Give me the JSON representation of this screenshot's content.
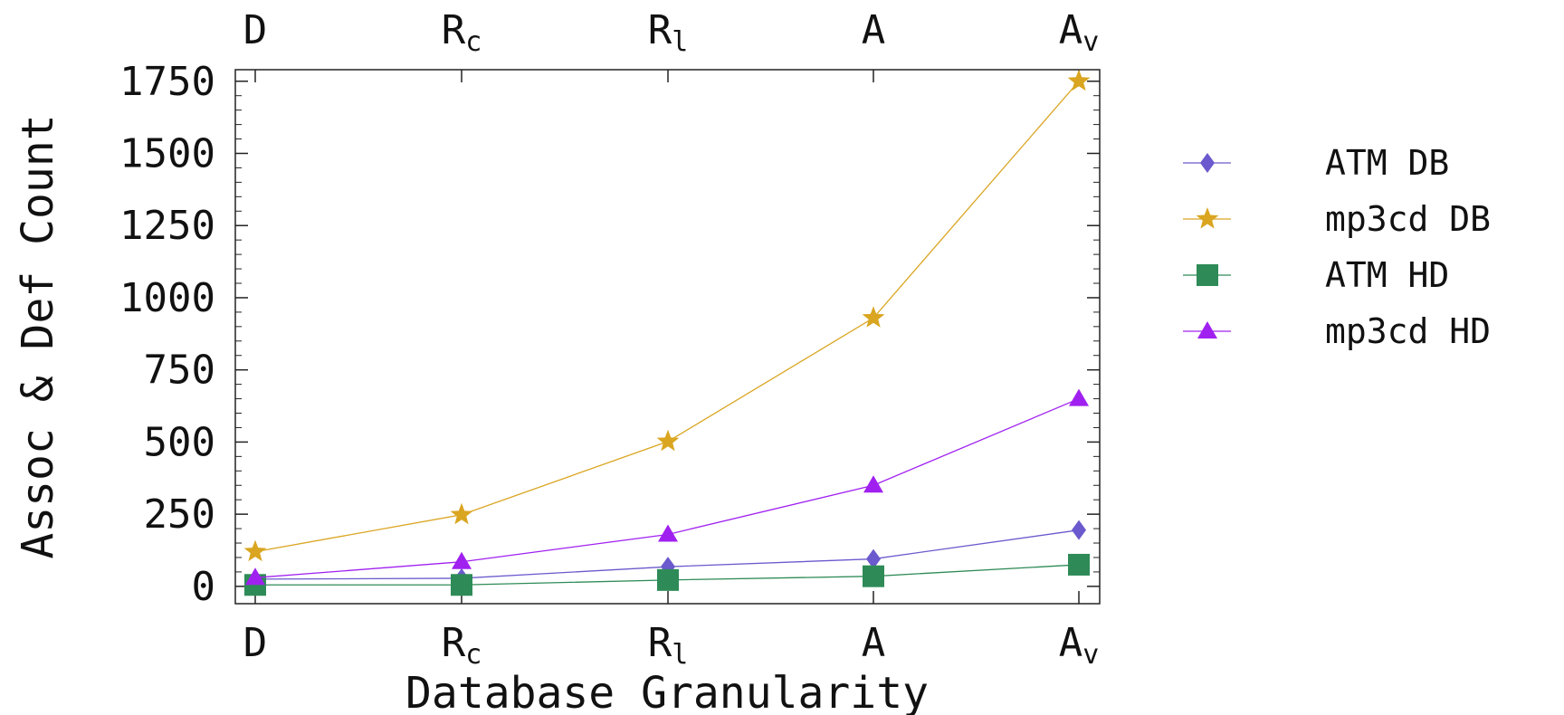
{
  "chart_data": {
    "type": "line",
    "xlabel": "Database Granularity",
    "ylabel": "Assoc & Def Count",
    "categories": [
      {
        "main": "D",
        "sub": ""
      },
      {
        "main": "R",
        "sub": "c"
      },
      {
        "main": "R",
        "sub": "l"
      },
      {
        "main": "A",
        "sub": ""
      },
      {
        "main": "A",
        "sub": "v"
      }
    ],
    "ylim": [
      -60,
      1790
    ],
    "yticks": [
      0,
      250,
      500,
      750,
      1000,
      1250,
      1500,
      1750
    ],
    "ytick_labels": [
      "0",
      "250",
      "500",
      "750",
      "1000",
      "1250",
      "1500",
      "1750"
    ],
    "grid": false,
    "legend_position": "right",
    "series": [
      {
        "name": "ATM DB",
        "marker": "diamond",
        "color": "#6A5ACD",
        "values": [
          25,
          28,
          68,
          95,
          195
        ]
      },
      {
        "name": "mp3cd DB",
        "marker": "star",
        "color": "#DAA520",
        "values": [
          120,
          248,
          502,
          930,
          1750
        ]
      },
      {
        "name": "ATM HD",
        "marker": "square",
        "color": "#2E8B57",
        "values": [
          5,
          5,
          22,
          35,
          75
        ]
      },
      {
        "name": "mp3cd HD",
        "marker": "triangle",
        "color": "#A020F0",
        "values": [
          30,
          85,
          180,
          350,
          650
        ]
      }
    ]
  }
}
